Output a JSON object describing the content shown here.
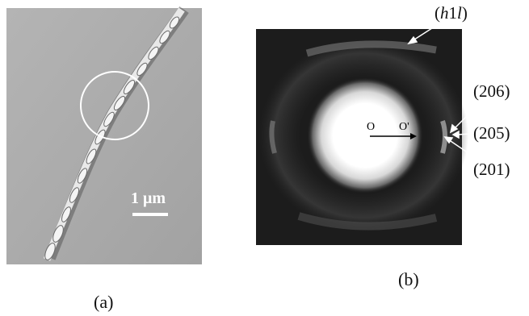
{
  "figure": {
    "panel_a": {
      "label": "(a)",
      "scale_bar": "1 μm"
    },
    "panel_b": {
      "label": "(b)",
      "origin_label": "O",
      "shifted_origin_label": "O'",
      "reflections": [
        {
          "pre": "(",
          "h": "h",
          "mid": "1",
          "l": "l",
          "post": ")"
        },
        {
          "text": "(206)"
        },
        {
          "text": "(205)"
        },
        {
          "text": "(201)"
        }
      ]
    }
  },
  "colors": {
    "sem_background": "#a9a9a9",
    "diffraction_background": "#1a1a1a",
    "text": "#111111"
  }
}
